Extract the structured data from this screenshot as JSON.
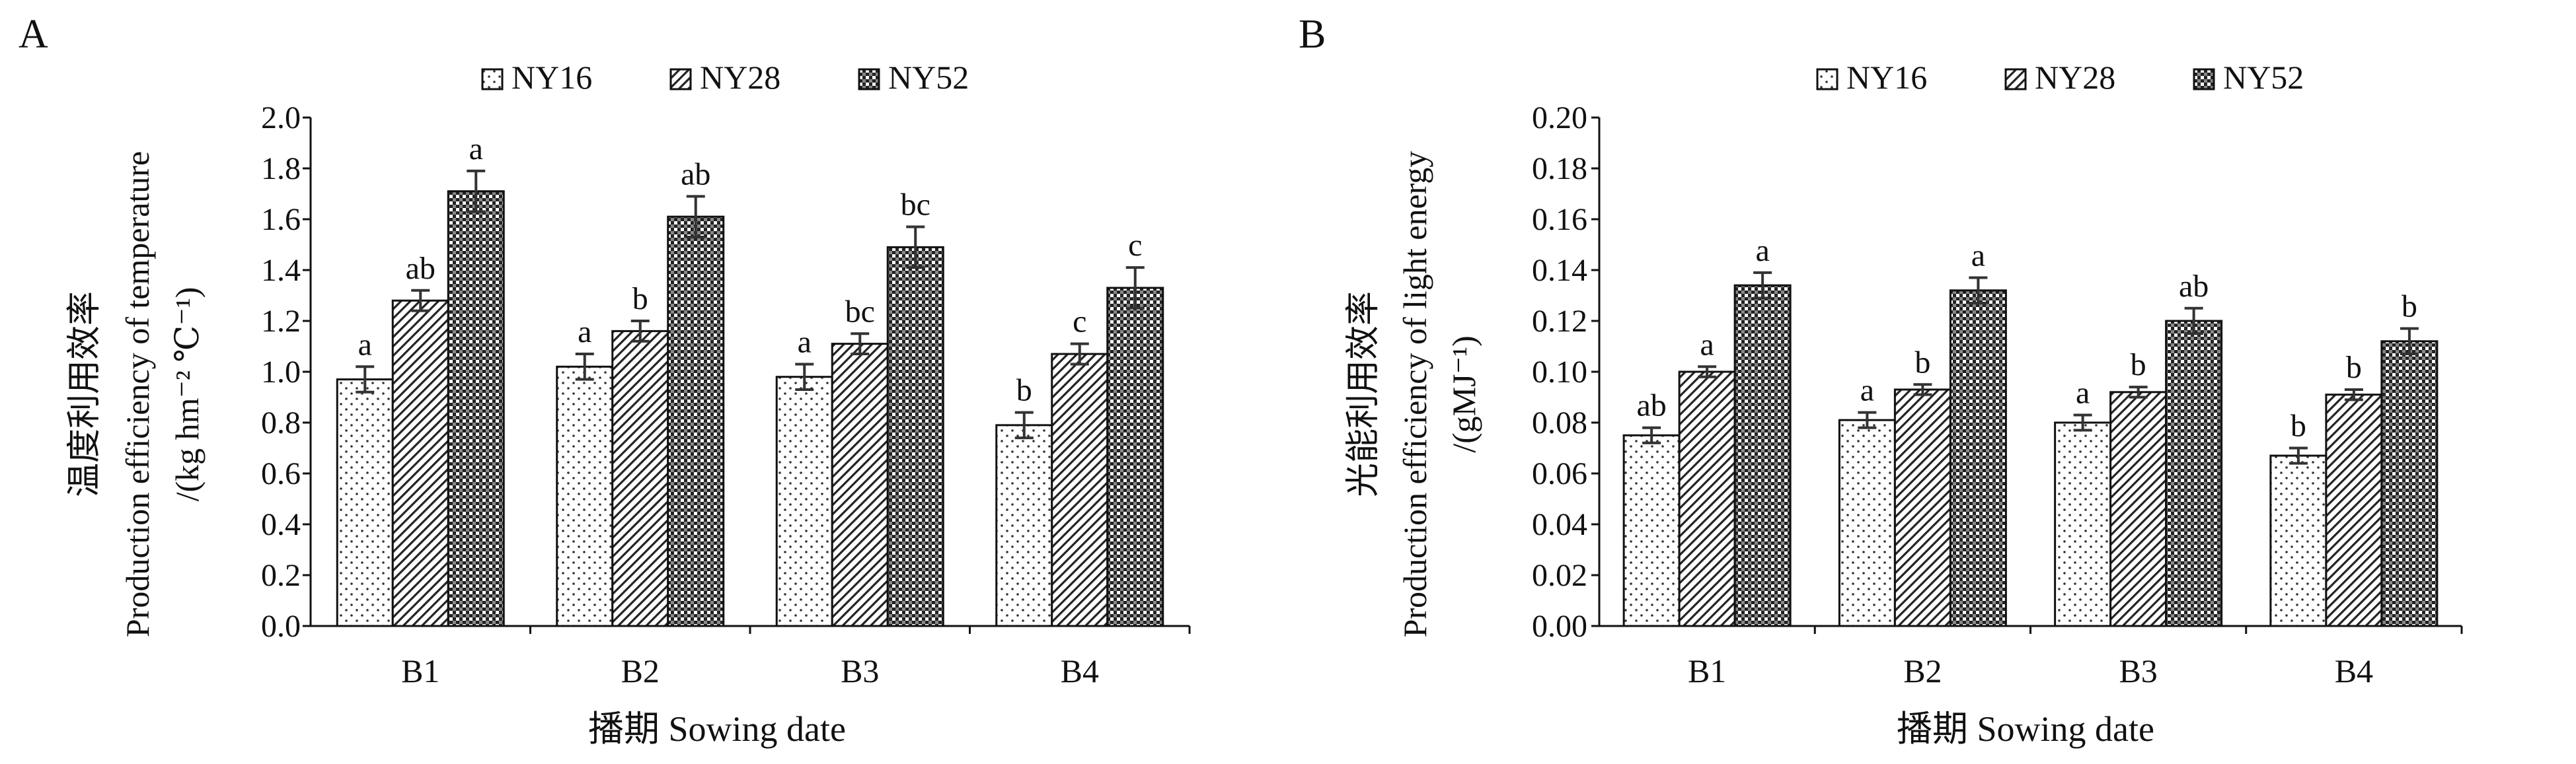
{
  "panels": [
    {
      "label": "A"
    },
    {
      "label": "B"
    }
  ],
  "chart_data": [
    {
      "type": "bar",
      "panel": "A",
      "categories": [
        "B1",
        "B2",
        "B3",
        "B4"
      ],
      "series": [
        {
          "name": "NY16",
          "values": [
            0.97,
            1.02,
            0.98,
            0.79
          ],
          "errors": [
            0.05,
            0.05,
            0.05,
            0.05
          ],
          "labels": [
            "a",
            "a",
            "a",
            "b"
          ]
        },
        {
          "name": "NY28",
          "values": [
            1.28,
            1.16,
            1.11,
            1.07
          ],
          "errors": [
            0.04,
            0.04,
            0.04,
            0.04
          ],
          "labels": [
            "ab",
            "b",
            "bc",
            "c"
          ]
        },
        {
          "name": "NY52",
          "values": [
            1.71,
            1.61,
            1.49,
            1.33
          ],
          "errors": [
            0.08,
            0.08,
            0.08,
            0.08
          ],
          "labels": [
            "a",
            "ab",
            "bc",
            "c"
          ]
        }
      ],
      "ylabel": [
        "温度利用效率",
        "Production efficiency of temperature",
        "/(kg hm⁻² ℃⁻¹)"
      ],
      "xlabel": "播期  Sowing date",
      "ylim": [
        0,
        2.0
      ],
      "ytick_step": 0.2,
      "yticks": [
        "0.0",
        "0.2",
        "0.4",
        "0.6",
        "0.8",
        "1.0",
        "1.2",
        "1.4",
        "1.6",
        "1.8",
        "2.0"
      ],
      "grid": false,
      "legend_position": "top-center"
    },
    {
      "type": "bar",
      "panel": "B",
      "categories": [
        "B1",
        "B2",
        "B3",
        "B4"
      ],
      "series": [
        {
          "name": "NY16",
          "values": [
            0.075,
            0.081,
            0.08,
            0.067
          ],
          "errors": [
            0.003,
            0.003,
            0.003,
            0.003
          ],
          "labels": [
            "ab",
            "a",
            "a",
            "b"
          ]
        },
        {
          "name": "NY28",
          "values": [
            0.1,
            0.093,
            0.092,
            0.091
          ],
          "errors": [
            0.002,
            0.002,
            0.002,
            0.002
          ],
          "labels": [
            "a",
            "b",
            "b",
            "b"
          ]
        },
        {
          "name": "NY52",
          "values": [
            0.134,
            0.132,
            0.12,
            0.112
          ],
          "errors": [
            0.005,
            0.005,
            0.005,
            0.005
          ],
          "labels": [
            "a",
            "a",
            "ab",
            "b"
          ]
        }
      ],
      "ylabel": [
        "光能利用效率",
        "Production efficiency of light energy",
        "/(gMJ⁻¹)"
      ],
      "xlabel": "播期  Sowing date",
      "ylim": [
        0,
        0.2
      ],
      "ytick_step": 0.02,
      "yticks": [
        "0.00",
        "0.02",
        "0.04",
        "0.06",
        "0.08",
        "0.10",
        "0.12",
        "0.14",
        "0.16",
        "0.18",
        "0.20"
      ],
      "grid": false,
      "legend_position": "top-center"
    }
  ],
  "colors": {
    "ink": "#111111",
    "fill": "#ffffff"
  },
  "patterns": {
    "NY16": "dots",
    "NY28": "diagonal-lines",
    "NY52": "crosshatch"
  }
}
